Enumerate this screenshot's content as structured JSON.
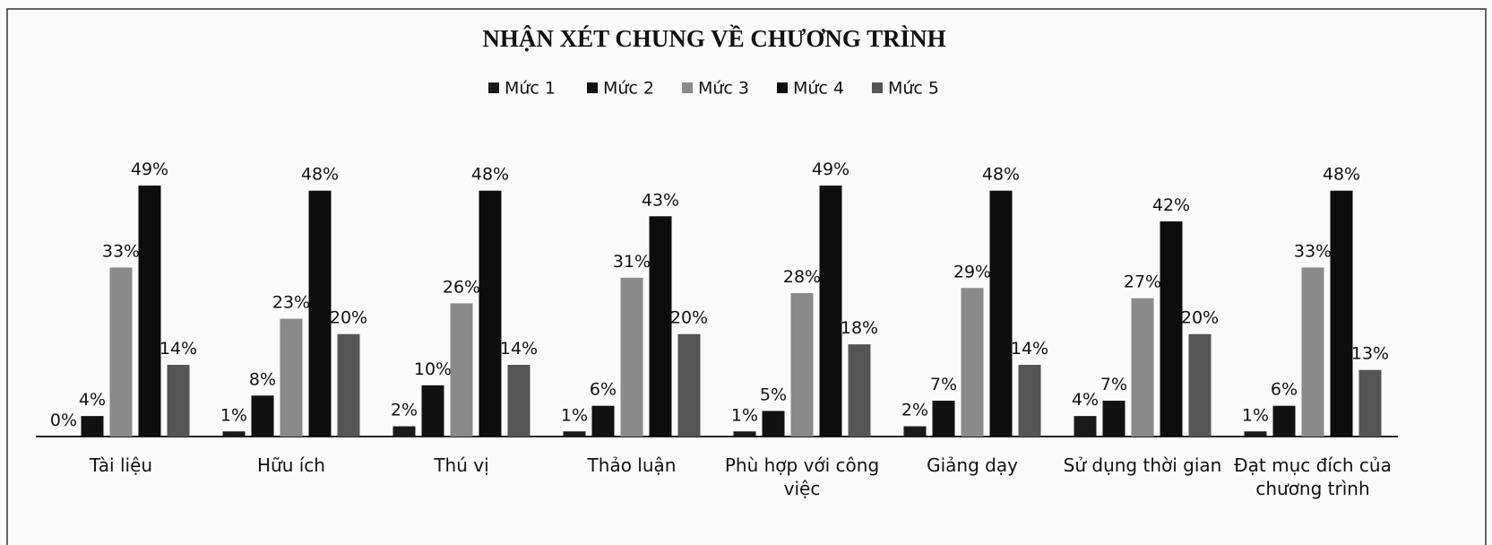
{
  "chart_data": {
    "type": "bar",
    "title": "NHẬN XÉT CHUNG VỀ CHƯƠNG TRÌNH",
    "categories": [
      "Tài liệu",
      "Hữu ích",
      "Thú vị",
      "Thảo luận",
      "Phù hợp với công việc",
      "Giảng dạy",
      "Sử dụng thời gian",
      "Đạt mục đích của chương trình"
    ],
    "series": [
      {
        "name": "Mức 1",
        "color": "#1a1a1a",
        "values": [
          0,
          1,
          2,
          1,
          1,
          2,
          4,
          1
        ],
        "value_labels": [
          "0%",
          "1%",
          "2%",
          "1%",
          "1%",
          "2%",
          "4%",
          "1%"
        ]
      },
      {
        "name": "Mức 2",
        "color": "#111111",
        "values": [
          4,
          8,
          10,
          6,
          5,
          7,
          7,
          6
        ],
        "value_labels": [
          "4%",
          "8%",
          "10%",
          "6%",
          "5%",
          "7%",
          "7%",
          "6%"
        ]
      },
      {
        "name": "Mức 3",
        "color": "#8a8a8a",
        "values": [
          33,
          23,
          26,
          31,
          28,
          29,
          27,
          33
        ],
        "value_labels": [
          "33%",
          "23%",
          "26%",
          "31%",
          "28%",
          "29%",
          "27%",
          "33%"
        ]
      },
      {
        "name": "Mức 4",
        "color": "#0d0d0d",
        "values": [
          49,
          48,
          48,
          43,
          49,
          48,
          42,
          48
        ],
        "value_labels": [
          "49%",
          "48%",
          "48%",
          "43%",
          "49%",
          "48%",
          "42%",
          "48%"
        ]
      },
      {
        "name": "Mức 5",
        "color": "#555555",
        "values": [
          14,
          20,
          14,
          20,
          18,
          14,
          20,
          13
        ],
        "value_labels": [
          "14%",
          "20%",
          "14%",
          "20%",
          "18%",
          "14%",
          "20%",
          "13%"
        ]
      }
    ],
    "legend": "top"
  }
}
